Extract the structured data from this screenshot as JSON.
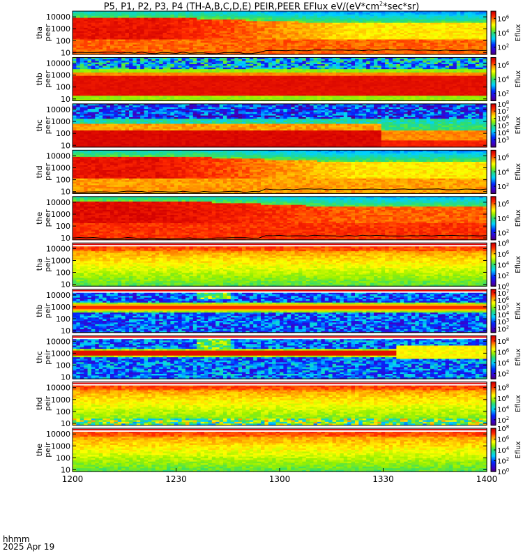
{
  "title": {
    "prefix": "P5, P1, P2, P3, P4 (TH-A,B,C,D,E) PEIR,PEER EFlux eV/(eV*cm",
    "sup": "2",
    "suffix": "*sec*sr)"
  },
  "time_label": {
    "line1": "hhmm",
    "line2": "2025 Apr 19"
  },
  "chart_data": {
    "type": "heatmap",
    "title": "P5, P1, P2, P3, P4 (TH-A,B,C,D,E) PEIR,PEER EFlux eV/(eV*cm2*sec*sr)",
    "x_ticks": [
      "1200",
      "1230",
      "1300",
      "1330",
      "1400"
    ],
    "x_range_minutes": [
      0,
      120
    ],
    "y_scale": "log",
    "y_ticks": [
      "10",
      "100",
      "1000",
      "10000"
    ],
    "y_range_eV": [
      7,
      30000
    ],
    "colorbar_label": "Eflux",
    "panels": [
      {
        "probe": "tha",
        "species": "peer",
        "cb_ticks": [
          "10^2",
          "10^4",
          "10^6"
        ],
        "cb_range": [
          1,
          7
        ],
        "profile": "peer",
        "hot_start": 0.95,
        "hot_end": 0.72,
        "trans": 0.65,
        "cold_hot": 0.85,
        "edge_start": 3.9,
        "edge_end": 3.45,
        "black": true
      },
      {
        "probe": "thb",
        "species": "peer",
        "cb_ticks": [
          "10^2",
          "10^4",
          "10^6"
        ],
        "cb_range": [
          1,
          7
        ],
        "profile": "thbpeer"
      },
      {
        "probe": "thc",
        "species": "peer",
        "cb_ticks": [
          "10^3",
          "10^4",
          "10^5",
          "10^6",
          "10^7",
          "10^8"
        ],
        "cb_range": [
          2,
          8
        ],
        "profile": "thcpeer"
      },
      {
        "probe": "thd",
        "species": "peer",
        "cb_ticks": [
          "10^2",
          "10^4",
          "10^6"
        ],
        "cb_range": [
          1,
          7
        ],
        "profile": "peer",
        "hot_start": 0.95,
        "hot_end": 0.72,
        "trans": 0.62,
        "cold_hot": 0.8,
        "edge_start": 3.95,
        "edge_end": 3.5,
        "black": true
      },
      {
        "probe": "the",
        "species": "peer",
        "cb_ticks": [
          "10^2",
          "10^4",
          "10^6"
        ],
        "cb_range": [
          1,
          7
        ],
        "profile": "peer",
        "hot_start": 0.97,
        "hot_end": 0.85,
        "trans": 0.7,
        "cold_hot": 0.9,
        "edge_start": 4.1,
        "edge_end": 3.6,
        "black": true
      },
      {
        "probe": "tha",
        "species": "peir",
        "cb_ticks": [
          "10^0",
          "10^2",
          "10^4",
          "10^6",
          "10^8"
        ],
        "cb_range": [
          0,
          8
        ],
        "profile": "peir",
        "band_top": true
      },
      {
        "probe": "thb",
        "species": "peir",
        "cb_ticks": [
          "10^2",
          "10^3",
          "10^4",
          "10^5",
          "10^6",
          "10^7"
        ],
        "cb_range": [
          1.5,
          7.5
        ],
        "profile": "thbpeir",
        "band_top": true
      },
      {
        "probe": "thc",
        "species": "peir",
        "cb_ticks": [
          "10^2",
          "10^4",
          "10^6",
          "10^8"
        ],
        "cb_range": [
          1,
          9
        ],
        "profile": "thcpeir",
        "band_top": true
      },
      {
        "probe": "thd",
        "species": "peir",
        "cb_ticks": [
          "10^2",
          "10^4",
          "10^6",
          "10^8"
        ],
        "cb_range": [
          1,
          9
        ],
        "profile": "peir",
        "band_top": true,
        "noisy_low": true
      },
      {
        "probe": "the",
        "species": "peir",
        "cb_ticks": [
          "10^0",
          "10^2",
          "10^4",
          "10^6",
          "10^8"
        ],
        "cb_range": [
          0,
          8
        ],
        "profile": "peir",
        "band_top": true
      }
    ]
  }
}
